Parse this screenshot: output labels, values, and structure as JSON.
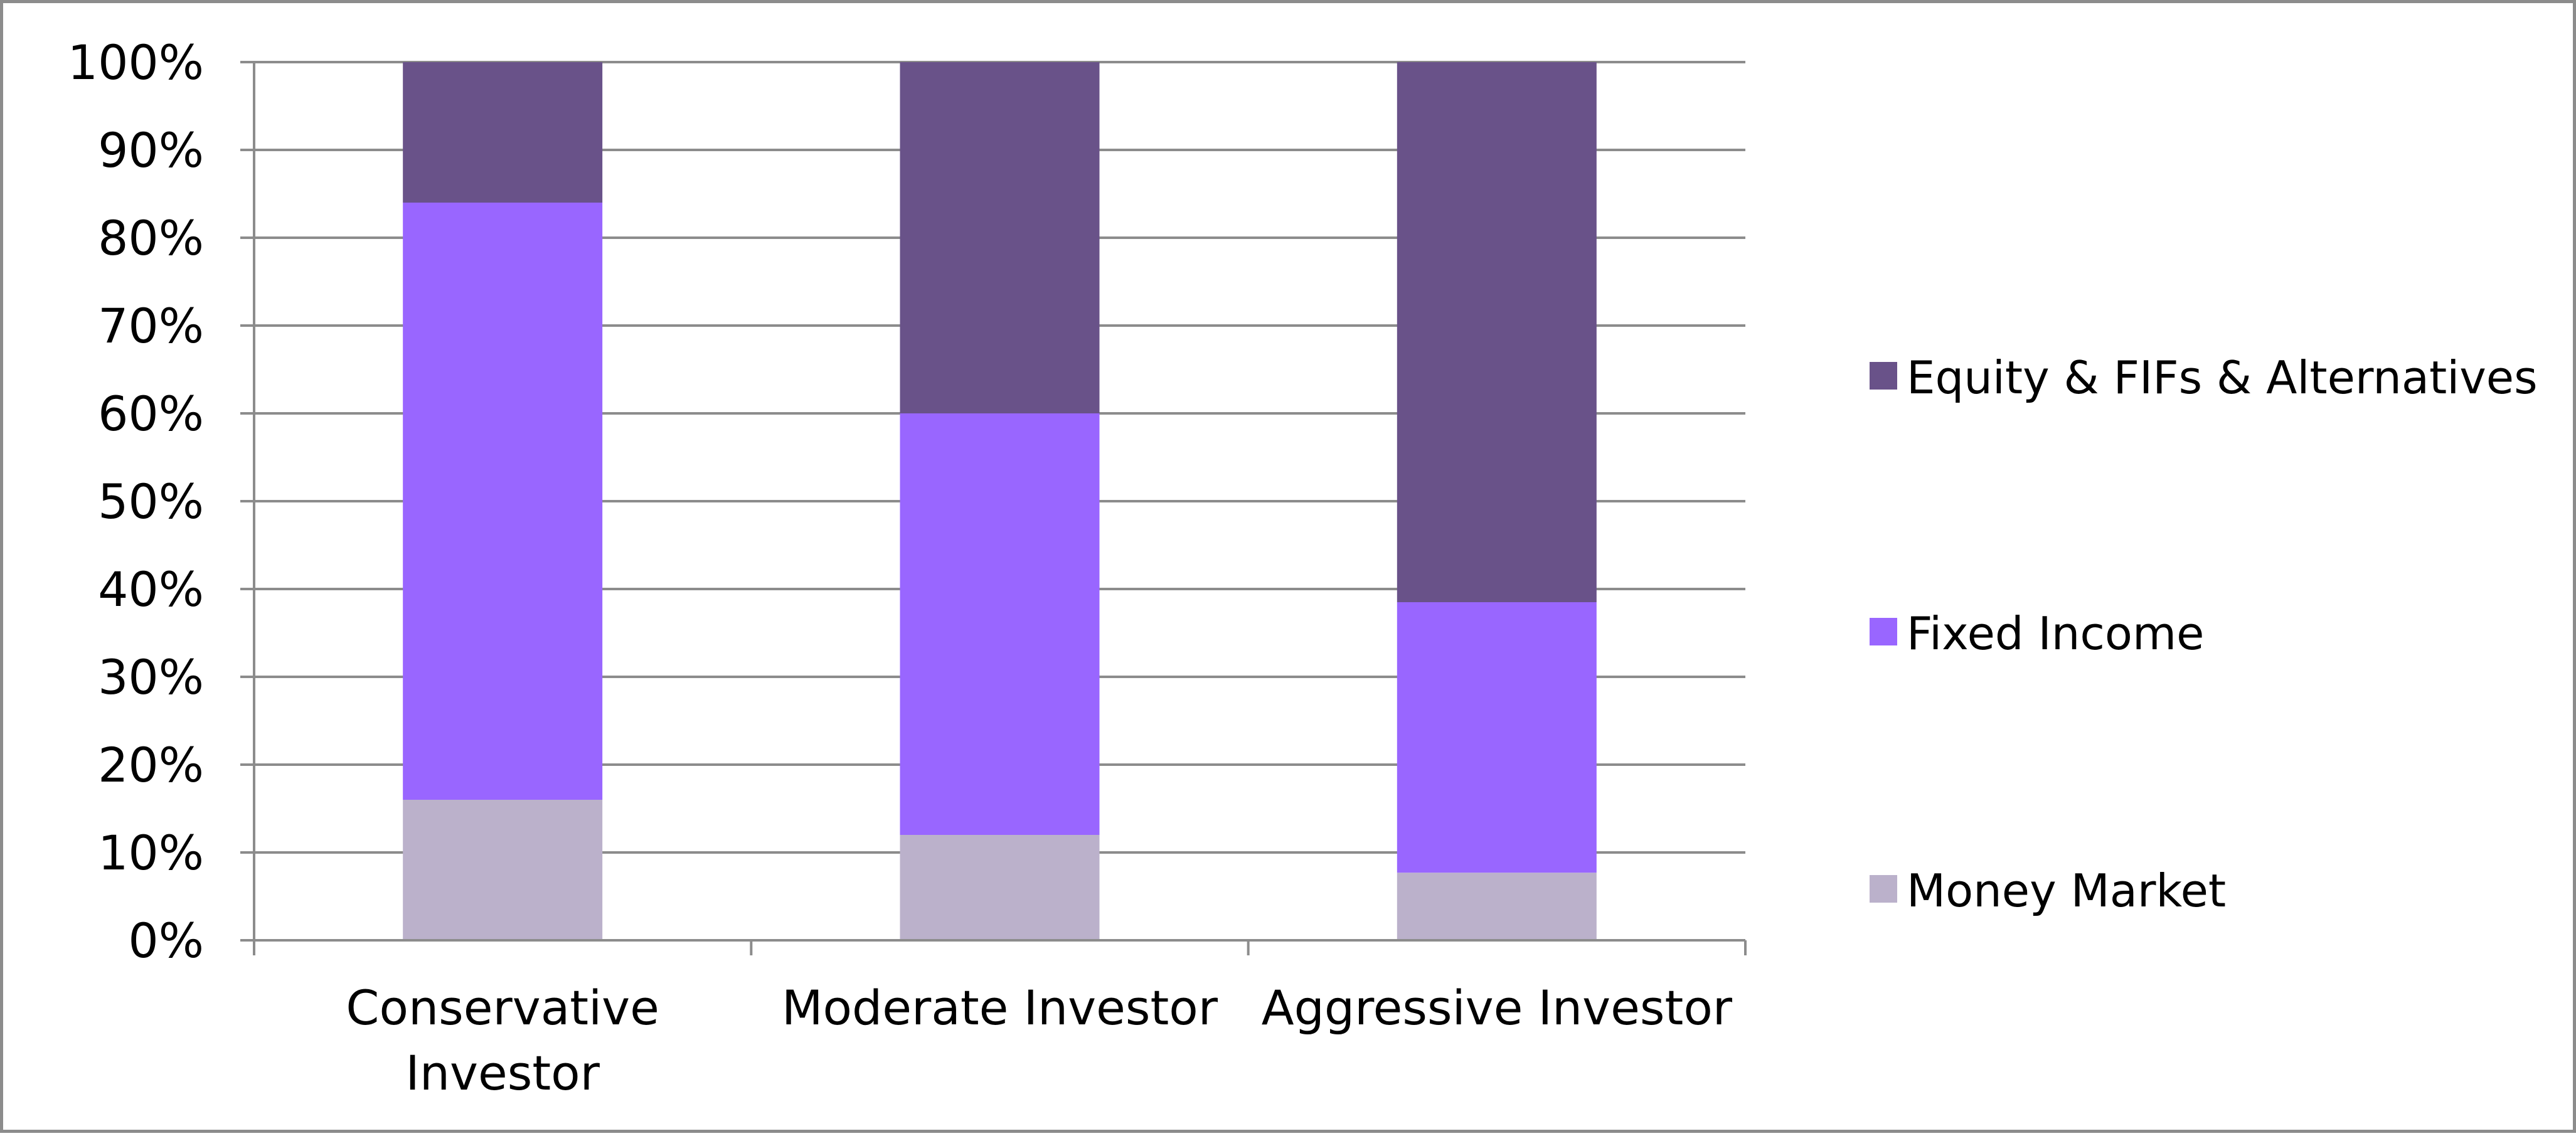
{
  "chart_data": {
    "type": "bar",
    "stacked": true,
    "categories": [
      [
        "Conservative",
        "Investor"
      ],
      [
        "Moderate Investor"
      ],
      [
        "Aggressive Investor"
      ]
    ],
    "series": [
      {
        "name": "Money Market",
        "color": "#bbb1cb",
        "values": [
          16,
          12,
          7.7
        ]
      },
      {
        "name": "Fixed Income",
        "color": "#9966ff",
        "values": [
          68,
          48,
          30.8
        ]
      },
      {
        "name": "Equity & FIFs & Alternatives",
        "color": "#695289",
        "values": [
          16,
          40,
          61.5
        ]
      }
    ],
    "ylim": [
      0,
      100
    ],
    "y_ticks": [
      "0%",
      "10%",
      "20%",
      "30%",
      "40%",
      "50%",
      "60%",
      "70%",
      "80%",
      "90%",
      "100%"
    ],
    "grid": true,
    "legend_position": "right",
    "legend_order": [
      "Equity & FIFs & Alternatives",
      "Fixed Income",
      "Money Market"
    ],
    "gridline_color": "#8c8c8c",
    "border_color": "#8c8c8c"
  }
}
